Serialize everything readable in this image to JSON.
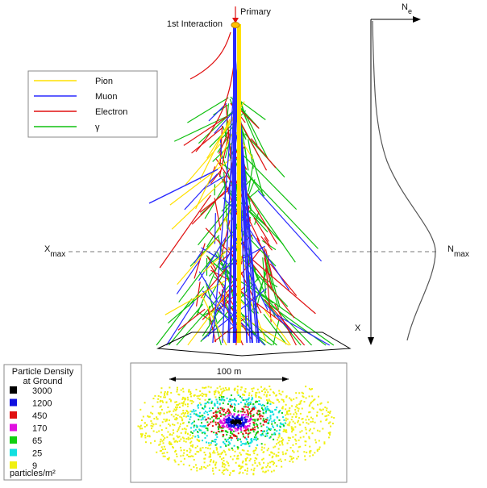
{
  "top": {
    "primary": "Primary",
    "first_interaction": "1st Interaction"
  },
  "legend": {
    "items": [
      {
        "label": "Pion",
        "color": "#ffe000"
      },
      {
        "label": "Muon",
        "color": "#2a2aff"
      },
      {
        "label": "Electron",
        "color": "#e01010"
      },
      {
        "label": "γ",
        "color": "#10c010"
      }
    ]
  },
  "axis": {
    "xmax": {
      "base": "X",
      "sub": "max"
    },
    "ne": {
      "base": "N",
      "sub": "e"
    },
    "nmax": {
      "base": "N",
      "sub": "max"
    },
    "x": "X"
  },
  "density": {
    "title": [
      "Particle Density",
      "at Ground"
    ],
    "items": [
      {
        "label": "3000",
        "color": "#000000"
      },
      {
        "label": "1200",
        "color": "#1010e0"
      },
      {
        "label": "450",
        "color": "#e01010"
      },
      {
        "label": "170",
        "color": "#e010e0"
      },
      {
        "label": "65",
        "color": "#10d010"
      },
      {
        "label": "25",
        "color": "#10e0e0"
      },
      {
        "label": "9",
        "color": "#f0f010"
      }
    ],
    "unit": "particles/m²"
  },
  "ground": {
    "scale": "100 m"
  }
}
